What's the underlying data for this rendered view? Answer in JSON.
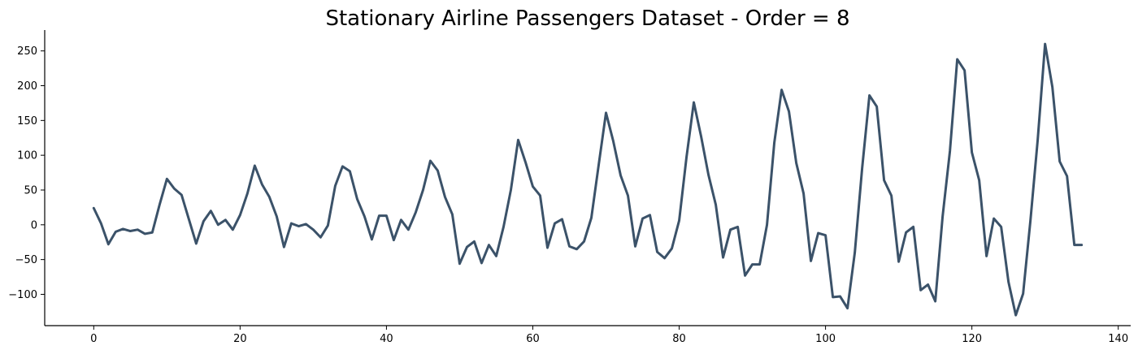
{
  "chart_data": {
    "type": "line",
    "title": "Stationary Airline Passengers Dataset - Order = 8",
    "xlabel": "",
    "ylabel": "",
    "xlim": [
      -6.7,
      141.7
    ],
    "ylim": [
      -145,
      280
    ],
    "xticks": [
      0,
      20,
      40,
      60,
      80,
      100,
      120,
      140
    ],
    "yticks": [
      -100,
      -50,
      0,
      50,
      100,
      150,
      200,
      250
    ],
    "grid": false,
    "legend": "none",
    "series": [
      {
        "color": "#3b5269",
        "x": [
          0,
          1,
          2,
          3,
          4,
          5,
          6,
          7,
          8,
          9,
          10,
          11,
          12,
          13,
          14,
          15,
          16,
          17,
          18,
          19,
          20,
          21,
          22,
          23,
          24,
          25,
          26,
          27,
          28,
          29,
          30,
          31,
          32,
          33,
          34,
          35,
          36,
          37,
          38,
          39,
          40,
          41,
          42,
          43,
          44,
          45,
          46,
          47,
          48,
          49,
          50,
          51,
          52,
          53,
          54,
          55,
          56,
          57,
          58,
          59,
          60,
          61,
          62,
          63,
          64,
          65,
          66,
          67,
          68,
          69,
          70,
          71,
          72,
          73,
          74,
          75,
          76,
          77,
          78,
          79,
          80,
          81,
          82,
          83,
          84,
          85,
          86,
          87,
          88,
          89,
          90,
          91,
          92,
          93,
          94,
          95,
          96,
          97,
          98,
          99,
          100,
          101,
          102,
          103,
          104,
          105,
          106,
          107,
          108,
          109,
          110,
          111,
          112,
          113,
          114,
          115,
          116,
          117,
          118,
          119,
          120,
          121,
          122,
          123,
          124,
          125,
          126,
          127,
          128,
          129,
          130,
          131,
          132,
          133,
          134,
          135
        ],
        "values": [
          24,
          2,
          -28,
          -10,
          -6,
          -9,
          -7,
          -13,
          -11,
          29,
          66,
          52,
          43,
          8,
          -27,
          5,
          20,
          0,
          7,
          -7,
          14,
          45,
          85,
          58,
          40,
          12,
          -32,
          2,
          -2,
          1,
          -7,
          -18,
          -1,
          56,
          84,
          77,
          37,
          12,
          -21,
          13,
          13,
          -22,
          7,
          -7,
          18,
          50,
          92,
          78,
          40,
          15,
          -56,
          -32,
          -24,
          -55,
          -29,
          -45,
          -3,
          50,
          122,
          90,
          55,
          42,
          -33,
          2,
          8,
          -31,
          -35,
          -24,
          10,
          86,
          161,
          120,
          71,
          42,
          -31,
          9,
          14,
          -39,
          -48,
          -34,
          6,
          97,
          176,
          127,
          72,
          29,
          -47,
          -7,
          -3,
          -73,
          -57,
          -57,
          0,
          118,
          194,
          163,
          89,
          45,
          -52,
          -12,
          -15,
          -104,
          -103,
          -120,
          -40,
          81,
          186,
          170,
          64,
          42,
          -53,
          -11,
          -3,
          -94,
          -86,
          -110,
          12,
          106,
          238,
          222,
          104,
          64,
          -45,
          9,
          -3,
          -82,
          -130,
          -99,
          6,
          123,
          260,
          198,
          91,
          70,
          -29,
          -29
        ]
      }
    ]
  }
}
